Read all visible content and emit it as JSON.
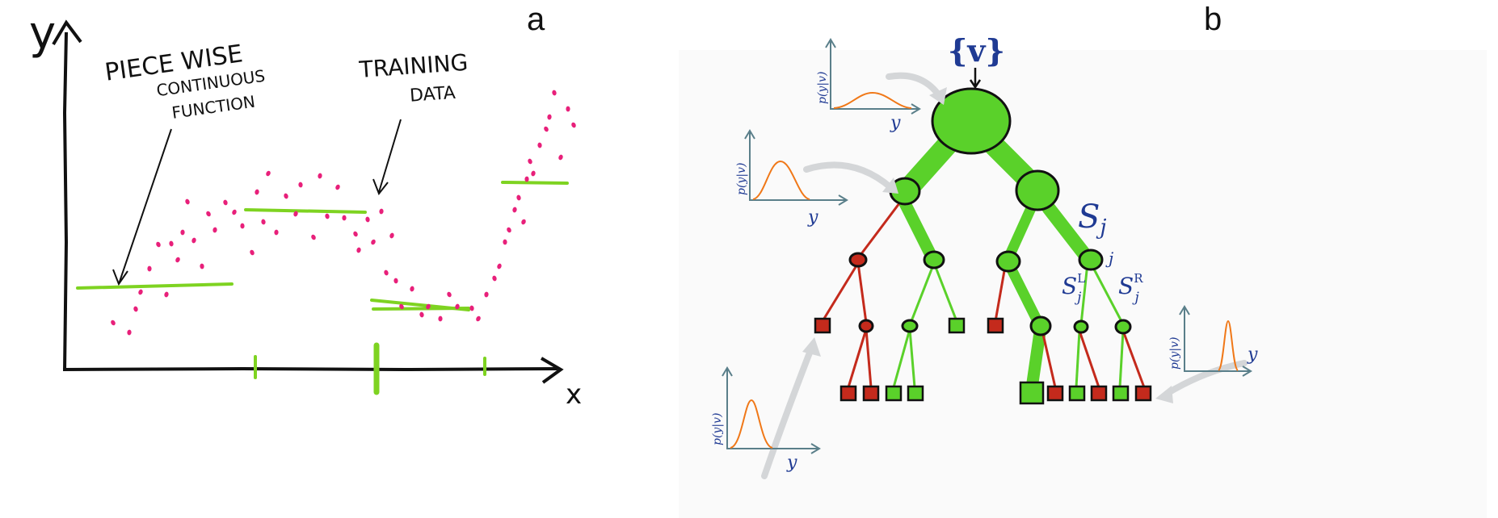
{
  "panel_a": {
    "letter": "a",
    "y_axis_label": "y",
    "x_axis_label": "x",
    "annotation_function": [
      "PIECE WISE",
      "CONTINUOUS",
      "FUNCTION"
    ],
    "annotation_data": [
      "TRAINING",
      "DATA"
    ],
    "colors": {
      "points": "#e8207a",
      "segments": "#7ed321",
      "ink": "#111111"
    }
  },
  "panel_b": {
    "letter": "b",
    "root_label": "{v}",
    "split_label": "S",
    "split_sub": "j",
    "node_index": "j",
    "left_label": "S",
    "left_sup": "L",
    "left_sub": "j",
    "right_label": "S",
    "right_sup": "R",
    "right_sub": "j",
    "plot_ylabel": "p(y|v)",
    "plot_xlabel": "y",
    "colors": {
      "green": "#5ad12a",
      "red": "#c42a1c",
      "curve": "#f07818",
      "axis": "#5a7f8a",
      "math": "#1f3a93"
    }
  }
}
